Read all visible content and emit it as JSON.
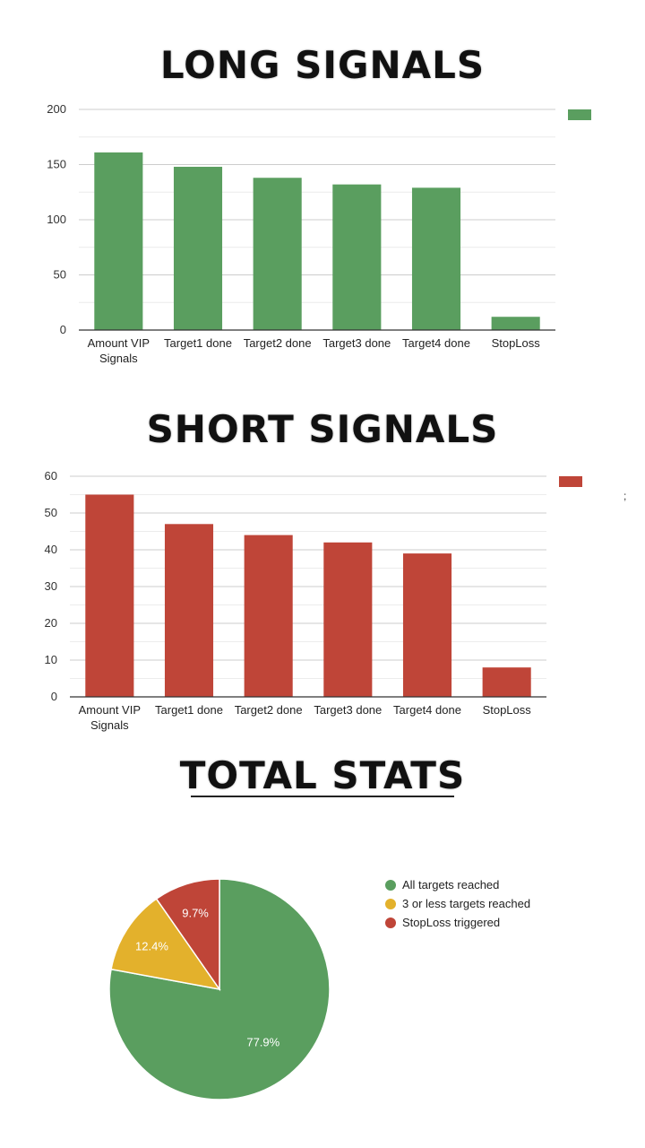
{
  "headings": {
    "long": "LONG SIGNALS",
    "short": "SHORT SIGNALS",
    "total": "TOTAL STATS"
  },
  "chart_data": [
    {
      "type": "bar",
      "categories": [
        "Amount VIP Signals",
        "Target1 done",
        "Target2 done",
        "Target3 done",
        "Target4 done",
        "StopLoss"
      ],
      "series": [
        {
          "values": [
            161,
            148,
            138,
            132,
            129,
            12
          ],
          "color": "#5a9e5f"
        }
      ],
      "ylim": [
        0,
        200
      ],
      "yticks": [
        0,
        50,
        100,
        150,
        200
      ],
      "grid": true,
      "legend": "top-right"
    },
    {
      "type": "bar",
      "categories": [
        "Amount VIP Signals",
        "Target1 done",
        "Target2 done",
        "Target3 done",
        "Target4 done",
        "StopLoss"
      ],
      "series": [
        {
          "values": [
            55,
            47,
            44,
            42,
            39,
            8
          ],
          "color": "#bf4538"
        }
      ],
      "ylim": [
        0,
        60
      ],
      "yticks": [
        0,
        10,
        20,
        30,
        40,
        50,
        60
      ],
      "grid": true,
      "legend": "top-right"
    },
    {
      "type": "pie",
      "slices": [
        {
          "label": "All targets reached",
          "value": 77.9,
          "display": "77.9%",
          "color": "#5a9e5f"
        },
        {
          "label": "3 or less targets reached",
          "value": 12.4,
          "display": "12.4%",
          "color": "#e3b12c"
        },
        {
          "label": "StopLoss triggered",
          "value": 9.7,
          "display": "9.7%",
          "color": "#bf4538"
        }
      ],
      "legend": "right"
    }
  ],
  "stray_mark": ";"
}
